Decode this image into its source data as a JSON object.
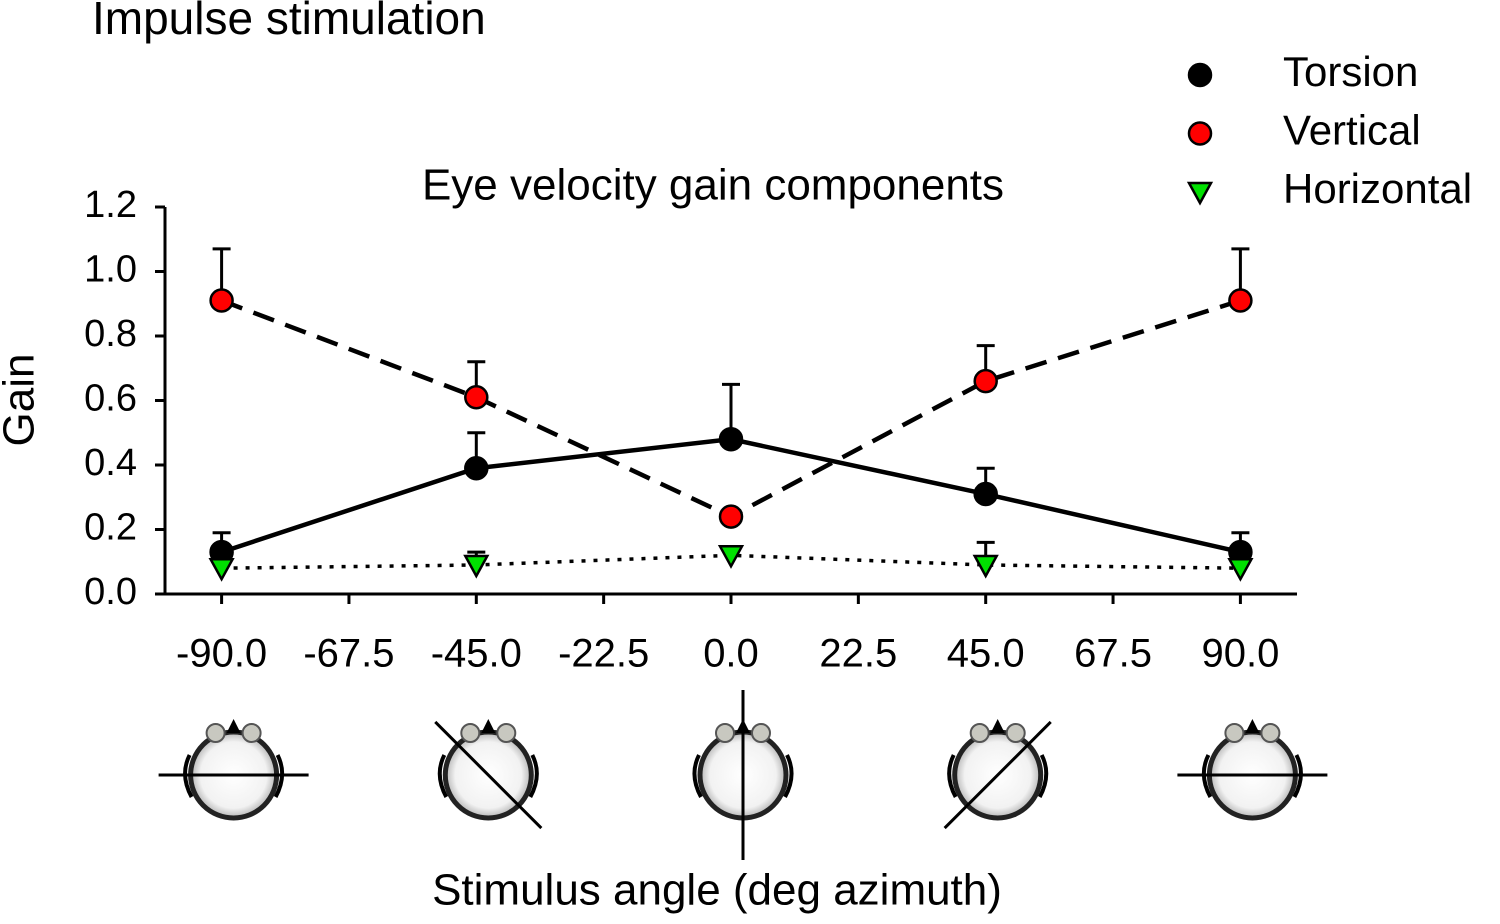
{
  "chart_data": {
    "type": "line",
    "title": "Impulse stimulation",
    "subtitle": "Eye velocity gain components",
    "xlabel": "Stimulus angle (deg azimuth)",
    "ylabel": "Gain",
    "x": [
      -90,
      -45,
      0,
      45,
      90
    ],
    "series": [
      {
        "name": "Torsion",
        "color": "#000000",
        "marker": "circle",
        "line_style": "solid",
        "values": [
          0.13,
          0.39,
          0.48,
          0.31,
          0.13
        ],
        "error": [
          0.06,
          0.11,
          0.17,
          0.08,
          0.06
        ]
      },
      {
        "name": "Vertical",
        "color": "#ff0000",
        "marker": "circle",
        "line_style": "dashed",
        "values": [
          0.91,
          0.61,
          0.24,
          0.66,
          0.91
        ],
        "error": [
          0.16,
          0.11,
          0.02,
          0.11,
          0.16
        ]
      },
      {
        "name": "Horizontal",
        "color": "#00e000",
        "marker": "triangle-down",
        "line_style": "dotted",
        "values": [
          0.08,
          0.09,
          0.12,
          0.09,
          0.08
        ],
        "error": [
          0.02,
          0.04,
          0.02,
          0.07,
          0.02
        ]
      }
    ],
    "xlim": [
      -100,
      100
    ],
    "xticks": [
      {
        "value": -90,
        "label": "-90.0"
      },
      {
        "value": -67.5,
        "label": "-67.5"
      },
      {
        "value": -45,
        "label": "-45.0"
      },
      {
        "value": -22.5,
        "label": "-22.5"
      },
      {
        "value": 0,
        "label": "0.0"
      },
      {
        "value": 22.5,
        "label": "22.5"
      },
      {
        "value": 45,
        "label": "45.0"
      },
      {
        "value": 67.5,
        "label": "67.5"
      },
      {
        "value": 90,
        "label": "90.0"
      }
    ],
    "ylim": [
      0,
      1.2
    ],
    "yticks": [
      {
        "value": 0,
        "label": "0.0"
      },
      0.2,
      0.4,
      0.6,
      0.8,
      {
        "value": 1,
        "label": "1.0"
      },
      1.2
    ],
    "grid": false,
    "legend": "top-right"
  }
}
